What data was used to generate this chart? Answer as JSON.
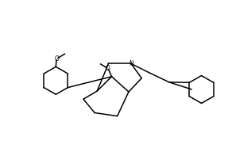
{
  "background_color": "#ffffff",
  "line_color": "#000000",
  "line_width": 1.1,
  "figsize": [
    2.92,
    1.87
  ],
  "dpi": 100,
  "xlim": [
    0,
    14.6
  ],
  "ylim": [
    0,
    9.35
  ]
}
